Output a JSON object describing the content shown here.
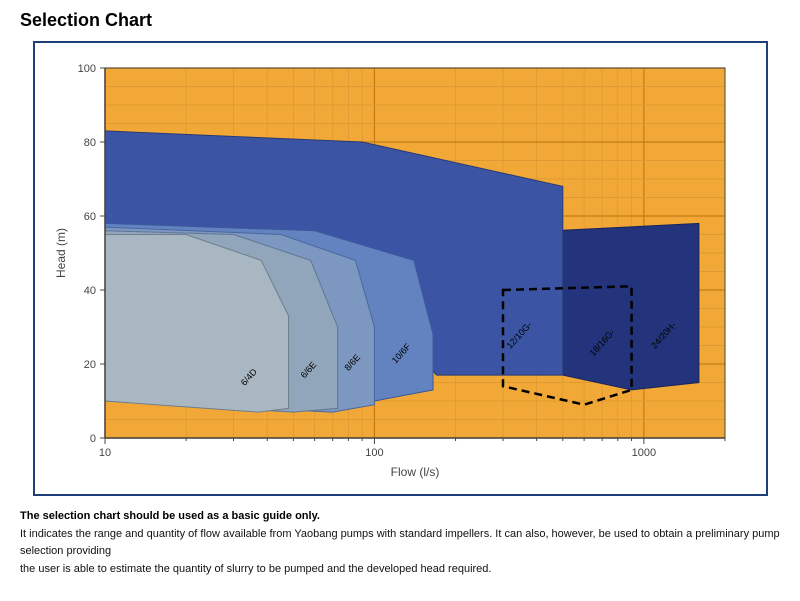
{
  "title": "Selection Chart",
  "chart": {
    "type": "area-envelope",
    "xlabel": "Flow (l/s)",
    "ylabel": "Head (m)",
    "xscale": "log",
    "yscale": "linear",
    "xlim": [
      10,
      2000
    ],
    "ylim": [
      0,
      100
    ],
    "xtick_values": [
      10,
      100,
      1000
    ],
    "xtick_labels": [
      "10",
      "100",
      "1000"
    ],
    "ytick_values": [
      0,
      20,
      40,
      60,
      80,
      100
    ],
    "ytick_labels": [
      "0",
      "20",
      "40",
      "60",
      "80",
      "100"
    ],
    "background_color": "#f2a836",
    "outer_background": "#ffffff",
    "frame_color": "#1f3f77",
    "grid_major_color": "#c47b14",
    "grid_minor_color": "#d89733",
    "axis_label_fontsize": 12,
    "tick_label_fontsize": 11,
    "series_label_fontsize": 9,
    "series": [
      {
        "name": "6/4D",
        "label": "6/4D",
        "fill": "#a9b7c2",
        "stroke": "#6d7e8c",
        "label_pos": {
          "x": 33,
          "y": 14
        },
        "envelope": [
          {
            "x": 10,
            "y": 55
          },
          {
            "x": 20,
            "y": 55
          },
          {
            "x": 38,
            "y": 48
          },
          {
            "x": 48,
            "y": 33
          },
          {
            "x": 48,
            "y": 8
          },
          {
            "x": 37,
            "y": 7
          },
          {
            "x": 10,
            "y": 10
          }
        ]
      },
      {
        "name": "6/6E",
        "label": "6/6E",
        "fill": "#92a6bb",
        "stroke": "#5e7696",
        "label_pos": {
          "x": 55,
          "y": 16
        },
        "envelope": [
          {
            "x": 10,
            "y": 56
          },
          {
            "x": 30,
            "y": 55
          },
          {
            "x": 58,
            "y": 48
          },
          {
            "x": 73,
            "y": 30
          },
          {
            "x": 73,
            "y": 8
          },
          {
            "x": 50,
            "y": 7
          },
          {
            "x": 10,
            "y": 10
          }
        ]
      },
      {
        "name": "8/6E",
        "label": "8/6E",
        "fill": "#7c97c0",
        "stroke": "#49689f",
        "label_pos": {
          "x": 80,
          "y": 18
        },
        "envelope": [
          {
            "x": 10,
            "y": 57
          },
          {
            "x": 45,
            "y": 55
          },
          {
            "x": 85,
            "y": 48
          },
          {
            "x": 100,
            "y": 30
          },
          {
            "x": 100,
            "y": 9
          },
          {
            "x": 70,
            "y": 7
          },
          {
            "x": 10,
            "y": 10
          }
        ]
      },
      {
        "name": "10/6F",
        "label": "10/6F",
        "fill": "#6283c0",
        "stroke": "#3b5a9b",
        "label_pos": {
          "x": 120,
          "y": 20
        },
        "envelope": [
          {
            "x": 10,
            "y": 58
          },
          {
            "x": 60,
            "y": 56
          },
          {
            "x": 140,
            "y": 48
          },
          {
            "x": 165,
            "y": 28
          },
          {
            "x": 165,
            "y": 13
          },
          {
            "x": 100,
            "y": 10
          },
          {
            "x": 10,
            "y": 11
          }
        ]
      },
      {
        "name": "12/10G",
        "label": "12/10G-",
        "fill": "#3b55a4",
        "stroke": "#273a77",
        "label_pos": {
          "x": 320,
          "y": 24
        },
        "envelope": [
          {
            "x": 10,
            "y": 83
          },
          {
            "x": 90,
            "y": 80
          },
          {
            "x": 500,
            "y": 68
          },
          {
            "x": 500,
            "y": 17
          },
          {
            "x": 170,
            "y": 17
          },
          {
            "x": 125,
            "y": 29
          },
          {
            "x": 10,
            "y": 40
          }
        ]
      },
      {
        "name": "18/16G",
        "label": "18/16G-",
        "fill": "none",
        "stroke": "#000000",
        "stroke_dasharray": "8,5",
        "stroke_width": 2.5,
        "label_pos": {
          "x": 650,
          "y": 22
        },
        "envelope": [
          {
            "x": 300,
            "y": 40
          },
          {
            "x": 900,
            "y": 41
          },
          {
            "x": 900,
            "y": 13
          },
          {
            "x": 600,
            "y": 9
          },
          {
            "x": 300,
            "y": 14
          },
          {
            "x": 300,
            "y": 40
          }
        ]
      },
      {
        "name": "24/20H",
        "label": "24/20H-",
        "fill": "#24347c",
        "stroke": "#17245a",
        "label_pos": {
          "x": 1100,
          "y": 24
        },
        "envelope": [
          {
            "x": 460,
            "y": 56
          },
          {
            "x": 1600,
            "y": 58
          },
          {
            "x": 1600,
            "y": 15
          },
          {
            "x": 900,
            "y": 13
          },
          {
            "x": 500,
            "y": 17
          },
          {
            "x": 460,
            "y": 44
          }
        ]
      }
    ],
    "draw_order": [
      "24/20H",
      "12/10G",
      "10/6F",
      "8/6E",
      "6/6E",
      "6/4D",
      "18/16G"
    ]
  },
  "caption_bold": "The selection chart should be used as a basic guide only.",
  "caption_line1": "It indicates the range and quantity of flow available from Yaobang pumps with standard impellers. It can also, however, be used to obtain a preliminary pump selection providing",
  "caption_line2": "the user is able to estimate the quantity of slurry to be pumped and the developed head required."
}
